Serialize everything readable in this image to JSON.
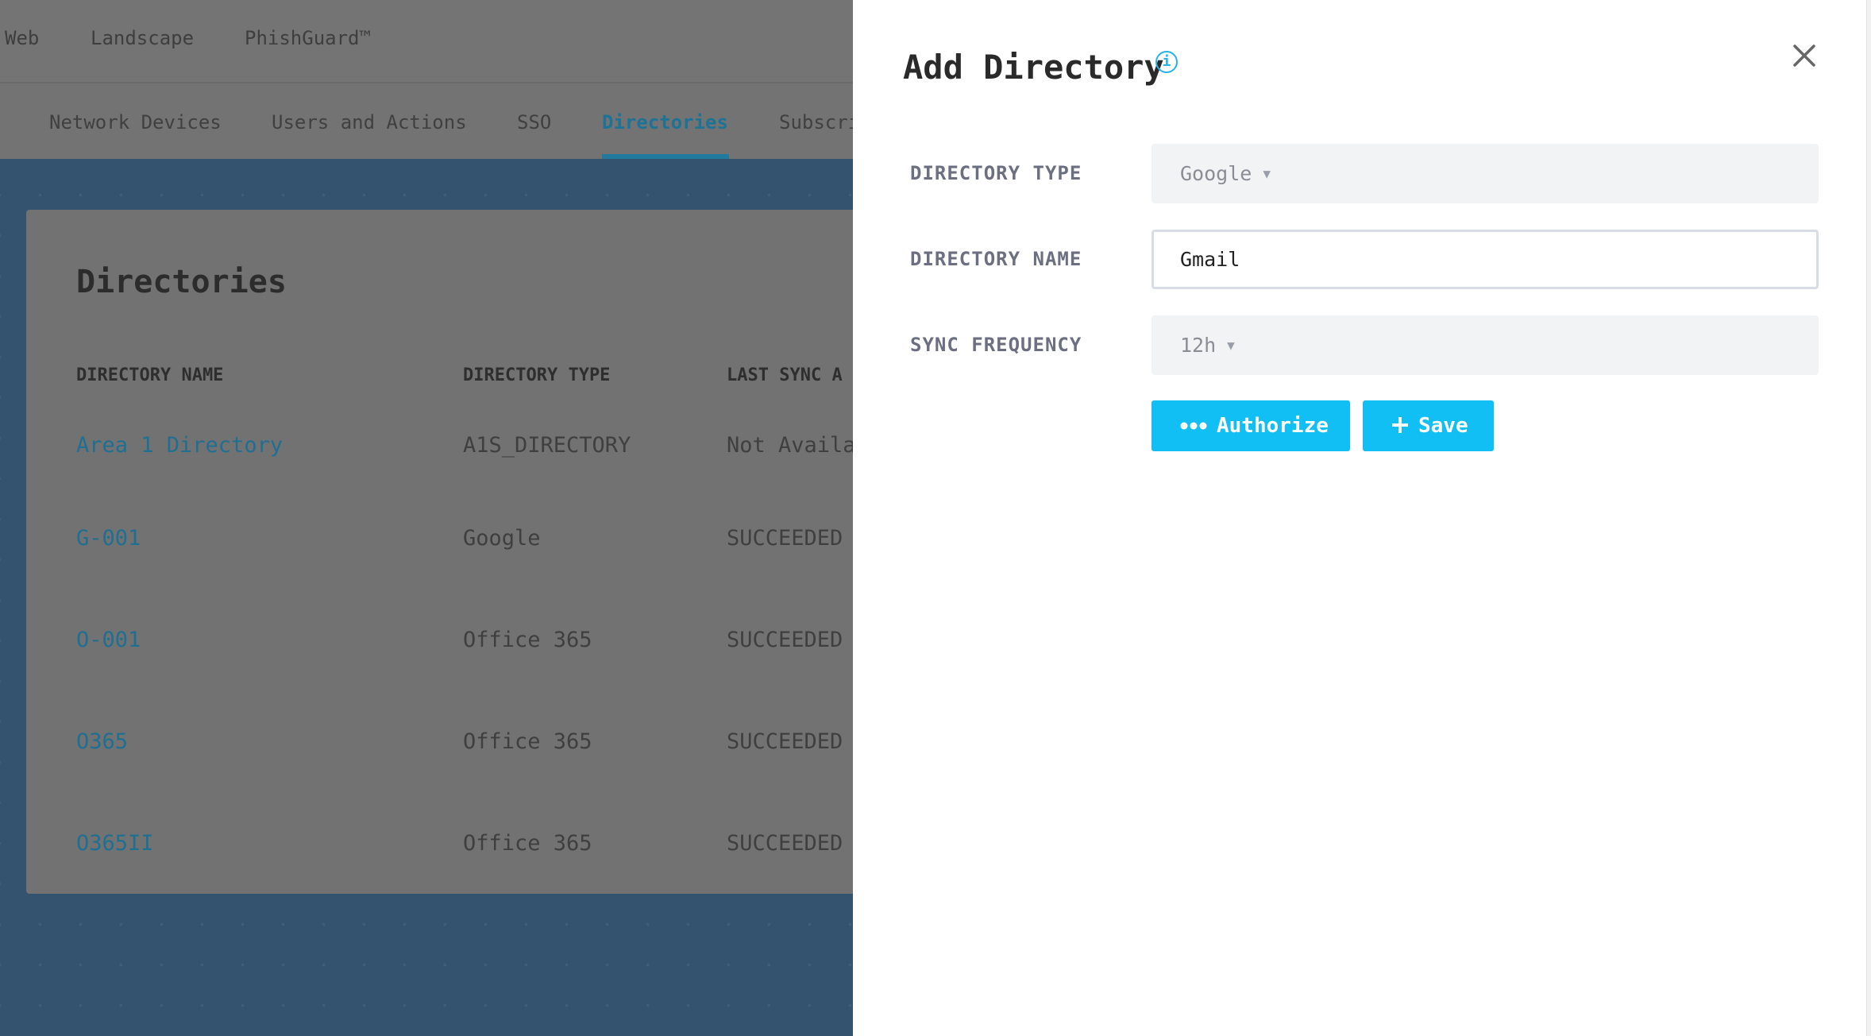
{
  "top_nav": {
    "items": [
      "Web",
      "Landscape",
      "PhishGuard™"
    ]
  },
  "tabs": {
    "items": [
      "Network Devices",
      "Users and Actions",
      "SSO",
      "Directories",
      "Subscri"
    ],
    "active": "Directories"
  },
  "directories": {
    "title": "Directories",
    "columns": [
      "DIRECTORY NAME",
      "DIRECTORY TYPE",
      "LAST SYNC A"
    ],
    "rows": [
      {
        "name": "Area 1 Directory",
        "type": "A1S_DIRECTORY",
        "status": "Not Availa"
      },
      {
        "name": "G-001",
        "type": "Google",
        "status": "SUCCEEDED"
      },
      {
        "name": "O-001",
        "type": "Office 365",
        "status": "SUCCEEDED"
      },
      {
        "name": "O365",
        "type": "Office 365",
        "status": "SUCCEEDED"
      },
      {
        "name": "O365II",
        "type": "Office 365",
        "status": "SUCCEEDED"
      }
    ]
  },
  "panel": {
    "title": "Add Directory",
    "info_icon": "i",
    "directory_type_label": "DIRECTORY TYPE",
    "directory_type_value": "Google",
    "directory_name_label": "DIRECTORY NAME",
    "directory_name_value": "Gmail",
    "sync_frequency_label": "SYNC FREQUENCY",
    "sync_frequency_value": "12h",
    "authorize_label": "Authorize",
    "save_label": "Save",
    "accent_color": "#12bff5"
  }
}
